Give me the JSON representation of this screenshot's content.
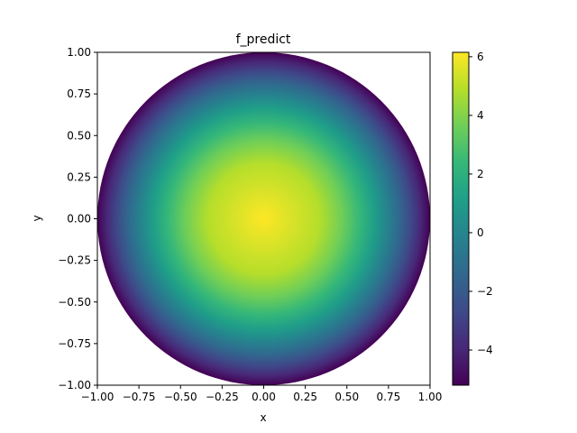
{
  "chart_data": {
    "type": "heatmap",
    "title": "f_predict",
    "xlabel": "x",
    "ylabel": "y",
    "xlim": [
      -1.0,
      1.0
    ],
    "ylim": [
      -1.0,
      1.0
    ],
    "x_ticks": [
      -1.0,
      -0.75,
      -0.5,
      -0.25,
      0.0,
      0.25,
      0.5,
      0.75,
      1.0
    ],
    "x_tick_labels": [
      "−1.00",
      "−0.75",
      "−0.50",
      "−0.25",
      "0.00",
      "0.25",
      "0.50",
      "0.75",
      "1.00"
    ],
    "y_ticks": [
      -1.0,
      -0.75,
      -0.5,
      -0.25,
      0.0,
      0.25,
      0.5,
      0.75,
      1.0
    ],
    "y_tick_labels": [
      "−1.00",
      "−0.75",
      "−0.50",
      "−0.25",
      "0.00",
      "0.25",
      "0.50",
      "0.75",
      "1.00"
    ],
    "domain_shape": "unit disk",
    "field_center": [
      0.0,
      0.0
    ],
    "value_range": [
      -5.2,
      6.15
    ],
    "colormap": "viridis",
    "colorbar": {
      "ticks": [
        -4,
        -2,
        0,
        2,
        4,
        6
      ],
      "tick_labels": [
        "−4",
        "−2",
        "0",
        "2",
        "4",
        "6"
      ],
      "min": -5.2,
      "max": 6.15
    },
    "grid": false
  }
}
